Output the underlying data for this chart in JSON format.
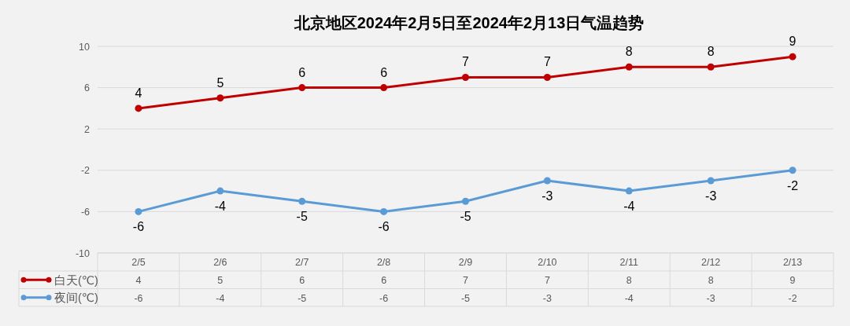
{
  "chart_data": {
    "type": "line",
    "title": "北京地区2024年2月5日至2024年2月13日气温趋势",
    "categories": [
      "2/5",
      "2/6",
      "2/7",
      "2/8",
      "2/9",
      "2/10",
      "2/11",
      "2/12",
      "2/13"
    ],
    "series": [
      {
        "name": "白天(℃)",
        "color": "#c00000",
        "values": [
          4,
          5,
          6,
          6,
          7,
          7,
          8,
          8,
          9
        ]
      },
      {
        "name": "夜间(℃)",
        "color": "#5b9bd5",
        "values": [
          -6,
          -4,
          -5,
          -6,
          -5,
          -3,
          -4,
          -3,
          -2
        ]
      }
    ],
    "annotations": [
      {
        "text": "4",
        "x": "2/5",
        "y": 4
      },
      {
        "text": "5",
        "x": "2/6",
        "y": 5
      },
      {
        "text": "6",
        "x": "2/7",
        "y": 6
      },
      {
        "text": "6",
        "x": "2/8",
        "y": 6
      },
      {
        "text": "7",
        "x": "2/9",
        "y": 7
      },
      {
        "text": "7",
        "x": "2/10",
        "y": 7
      },
      {
        "text": "8",
        "x": "2/11",
        "y": 8
      },
      {
        "text": "8",
        "x": "2/12",
        "y": 8
      },
      {
        "text": "9",
        "x": "2/13",
        "y": 9
      },
      {
        "text": "-6",
        "x": "2/5",
        "y": -6
      },
      {
        "text": "-4",
        "x": "2/6",
        "y": -4
      },
      {
        "text": "-5",
        "x": "2/7",
        "y": -5
      },
      {
        "text": "-6",
        "x": "2/8",
        "y": -6
      },
      {
        "text": "-5",
        "x": "2/9",
        "y": -5
      },
      {
        "text": "-3",
        "x": "2/10",
        "y": -3
      },
      {
        "text": "-4",
        "x": "2/11",
        "y": -4
      },
      {
        "text": "-3",
        "x": "2/12",
        "y": -3
      },
      {
        "text": "-2",
        "x": "2/13",
        "y": -2
      }
    ],
    "ylim": [
      -10,
      10
    ],
    "yticks": [
      -10,
      -6,
      -2,
      2,
      6,
      10
    ],
    "grid": "y",
    "marker": "circle",
    "data_labels": true,
    "legend": "bottom"
  }
}
